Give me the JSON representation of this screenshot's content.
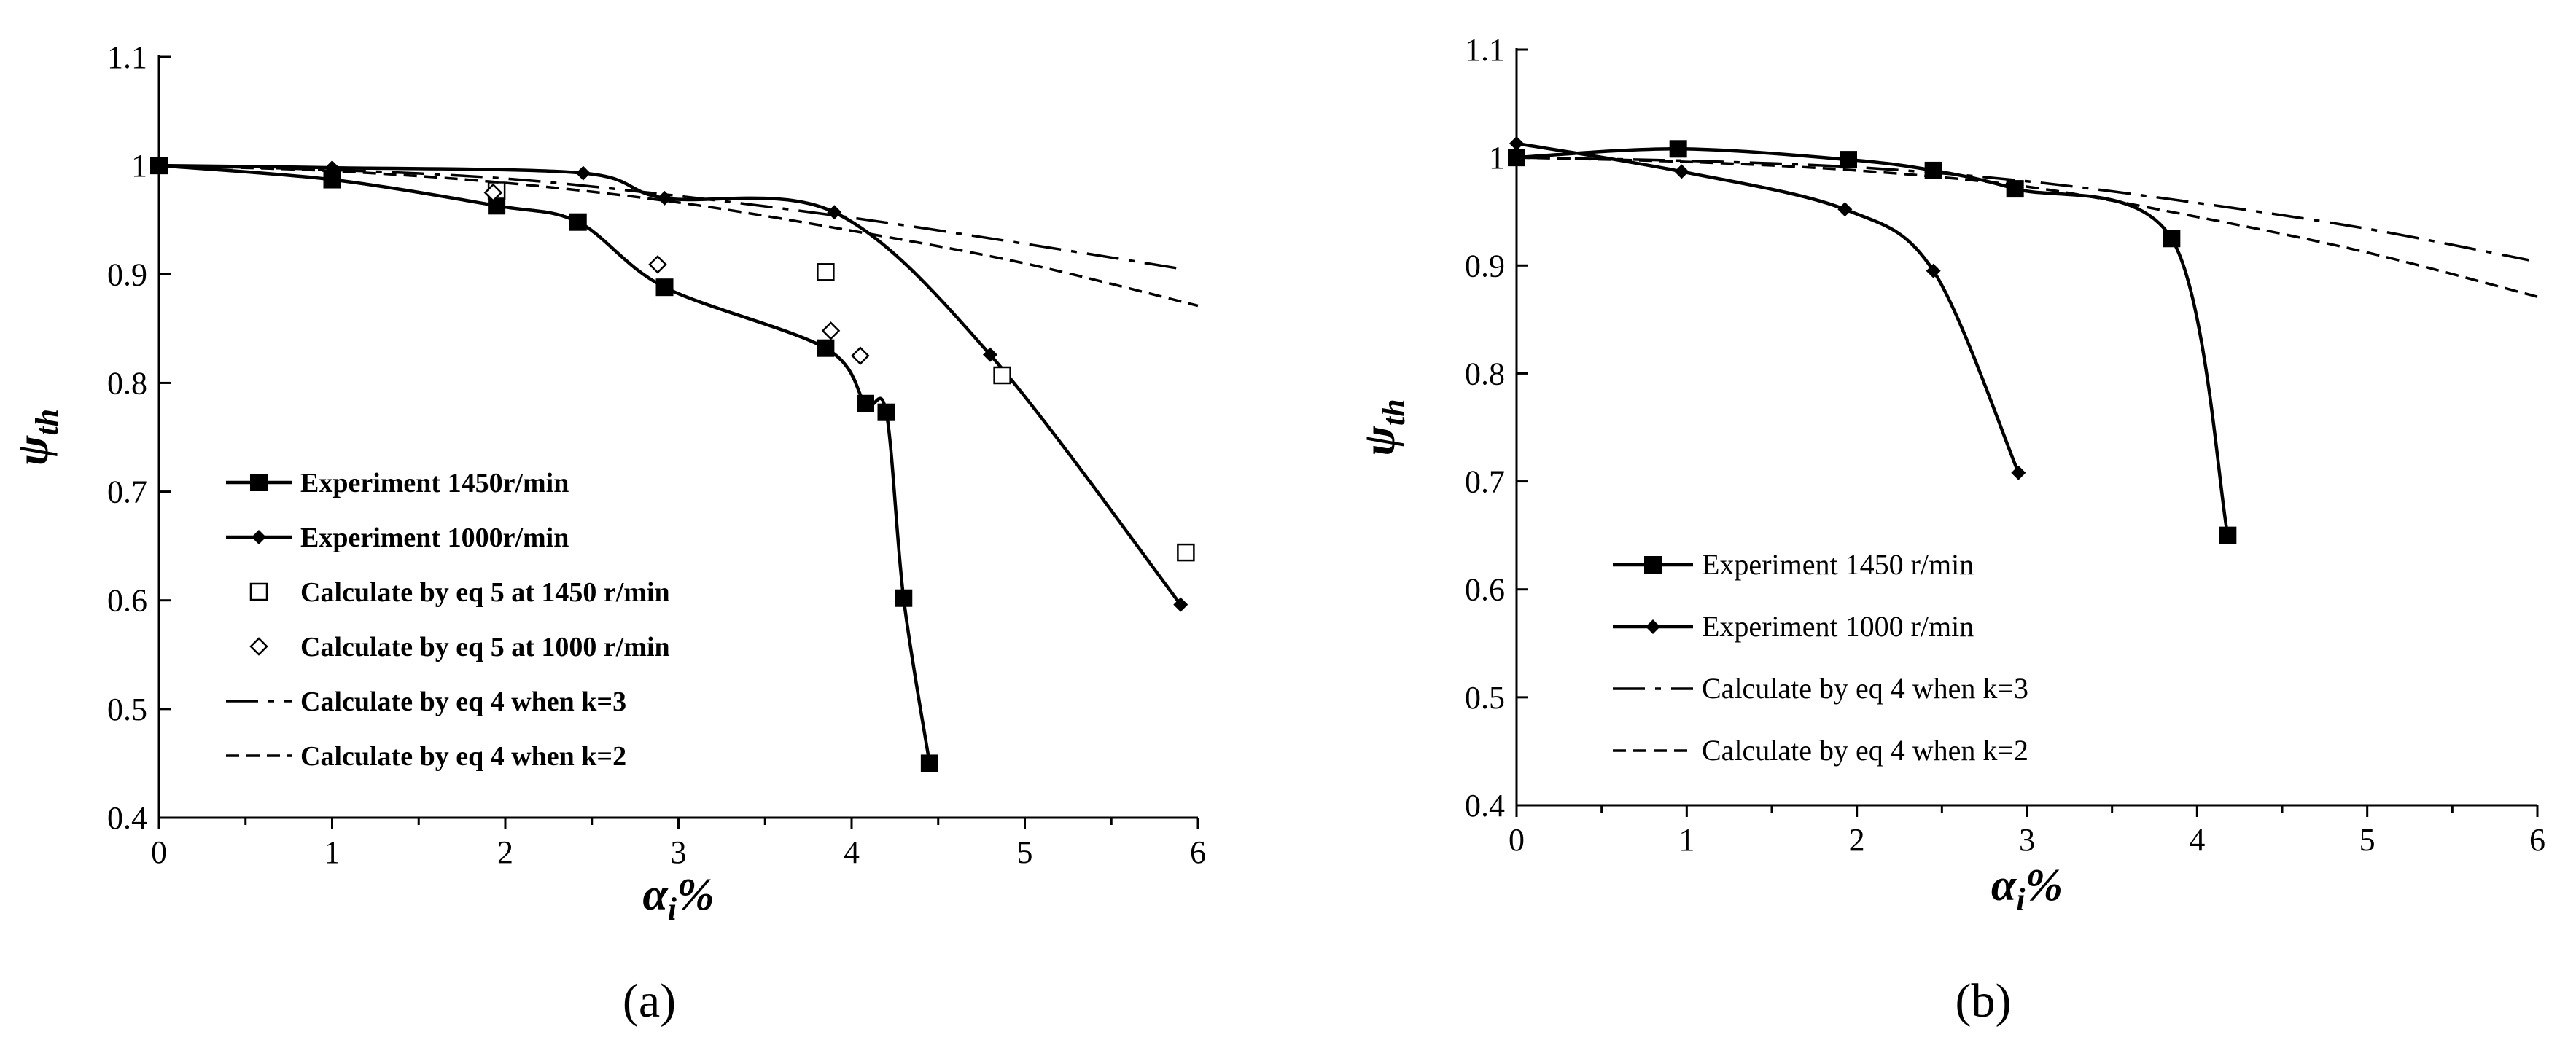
{
  "chart_data": [
    {
      "type": "line",
      "panel_label": "(a)",
      "xlabel": {
        "main": "α",
        "sub": "i",
        "suffix": "%"
      },
      "ylabel": {
        "main": "ψ",
        "sub": "th"
      },
      "xlim": [
        0,
        6
      ],
      "ylim": [
        0.4,
        1.1
      ],
      "xticks": [
        0,
        1,
        2,
        3,
        4,
        5,
        6
      ],
      "yticks": [
        0.4,
        0.5,
        0.6,
        0.7,
        0.8,
        0.9,
        1,
        1.1
      ],
      "xtick_labels": [
        "0",
        "1",
        "2",
        "3",
        "4",
        "5",
        "6"
      ],
      "ytick_labels": [
        "0.4",
        "0.5",
        "0.6",
        "0.7",
        "0.8",
        "0.9",
        "1",
        "1.1"
      ],
      "grid": false,
      "legend_position": "bottom-left",
      "series": [
        {
          "name": "Experiment 1450r/min",
          "style": "solid",
          "marker": "filled-square",
          "x": [
            0,
            1,
            1.95,
            2.42,
            2.92,
            3.85,
            4.08,
            4.2,
            4.3,
            4.45
          ],
          "y": [
            1.0,
            0.987,
            0.963,
            0.948,
            0.888,
            0.832,
            0.781,
            0.773,
            0.602,
            0.45
          ]
        },
        {
          "name": "Experiment 1000r/min",
          "style": "solid",
          "marker": "filled-diamond",
          "x": [
            0,
            1,
            2.45,
            2.92,
            3.9,
            4.8,
            5.9
          ],
          "y": [
            1.0,
            0.998,
            0.993,
            0.97,
            0.957,
            0.826,
            0.596
          ]
        },
        {
          "name": "Calculate by eq 5 at 1450 r/min",
          "style": "none",
          "marker": "open-square",
          "x": [
            1.95,
            3.85,
            4.87,
            5.93
          ],
          "y": [
            0.977,
            0.902,
            0.807,
            0.644
          ]
        },
        {
          "name": "Calculate by eq 5 at 1000 r/min",
          "style": "none",
          "marker": "open-diamond",
          "x": [
            1.93,
            2.88,
            3.88,
            4.05
          ],
          "y": [
            0.975,
            0.909,
            0.848,
            0.825
          ]
        },
        {
          "name": "Calculate by eq 4 when k=3",
          "style": "dashdot",
          "marker": "none",
          "x": [
            0,
            1,
            2,
            3,
            4,
            5,
            5.9
          ],
          "y": [
            1.0,
            0.996,
            0.988,
            0.972,
            0.952,
            0.928,
            0.905
          ]
        },
        {
          "name": "Calculate by eq 4 when k=2",
          "style": "dashed",
          "marker": "none",
          "x": [
            0,
            1,
            2,
            3,
            4,
            5,
            6
          ],
          "y": [
            1.0,
            0.995,
            0.984,
            0.966,
            0.94,
            0.91,
            0.871
          ]
        }
      ]
    },
    {
      "type": "line",
      "panel_label": "(b)",
      "xlabel": {
        "main": "α",
        "sub": "i",
        "suffix": "%"
      },
      "ylabel": {
        "main": "ψ",
        "sub": "th"
      },
      "xlim": [
        0,
        6
      ],
      "ylim": [
        0.4,
        1.1
      ],
      "xticks": [
        0,
        1,
        2,
        3,
        4,
        5,
        6
      ],
      "yticks": [
        0.4,
        0.5,
        0.6,
        0.7,
        0.8,
        0.9,
        1,
        1.1
      ],
      "xtick_labels": [
        "0",
        "1",
        "2",
        "3",
        "4",
        "5",
        "6"
      ],
      "ytick_labels": [
        "0.4",
        "0.5",
        "0.6",
        "0.7",
        "0.8",
        "0.9",
        "1",
        "1.1"
      ],
      "grid": false,
      "legend_position": "bottom-left",
      "series": [
        {
          "name": "Experiment 1450 r/min",
          "style": "solid",
          "marker": "filled-square",
          "x": [
            0,
            0.95,
            1.95,
            2.45,
            2.93,
            3.85,
            4.18
          ],
          "y": [
            1.0,
            1.008,
            0.998,
            0.988,
            0.971,
            0.925,
            0.65
          ]
        },
        {
          "name": "Experiment 1000 r/min",
          "style": "solid",
          "marker": "filled-diamond",
          "x": [
            0,
            0.97,
            1.93,
            2.45,
            2.95
          ],
          "y": [
            1.013,
            0.987,
            0.952,
            0.895,
            0.708
          ]
        },
        {
          "name": "Calculate by eq 4 when k=3",
          "style": "dashdot",
          "marker": "none",
          "x": [
            0,
            1,
            2,
            3,
            4,
            5,
            5.95
          ],
          "y": [
            1.0,
            0.997,
            0.991,
            0.978,
            0.958,
            0.934,
            0.905
          ]
        },
        {
          "name": "Calculate by eq 4 when k=2",
          "style": "dashed",
          "marker": "none",
          "x": [
            0,
            1,
            2,
            3,
            4,
            5,
            6
          ],
          "y": [
            1.0,
            0.996,
            0.988,
            0.973,
            0.945,
            0.912,
            0.871
          ]
        }
      ]
    }
  ]
}
